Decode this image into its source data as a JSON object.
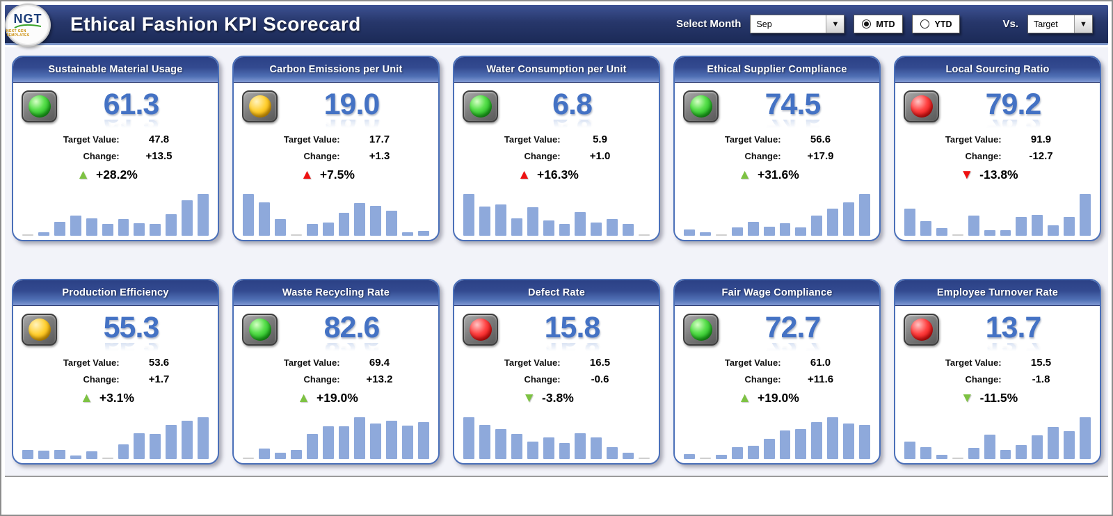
{
  "header": {
    "logo_text": "NGT",
    "logo_subtext": "NEXT GEN TEMPLATES",
    "title": "Ethical Fashion KPI Scorecard",
    "select_month_label": "Select Month",
    "month_selected": "Sep",
    "period_options": [
      {
        "label": "MTD",
        "selected": true
      },
      {
        "label": "YTD",
        "selected": false
      }
    ],
    "vs_label": "Vs.",
    "vs_selected": "Target"
  },
  "labels": {
    "target": "Target Value:",
    "change": "Change:"
  },
  "colors": {
    "topbar_navy": "#27376B",
    "card_accent_blue": "#4472C4",
    "sparkline_bar": "#8EA9DB",
    "green": "#7DC242",
    "red": "#EE1111",
    "status_green": "#2DC937",
    "status_amber": "#FFC000",
    "status_red": "#FF1F1F"
  },
  "cards": [
    {
      "title": "Sustainable Material Usage",
      "status": "green",
      "value": "61.3",
      "target": "47.8",
      "change": "+13.5",
      "pct": "+28.2%",
      "trend": "up",
      "trend_color": "green",
      "bars": [
        0.02,
        0.08,
        0.33,
        0.48,
        0.42,
        0.28,
        0.4,
        0.3,
        0.28,
        0.52,
        0.85,
        1.0
      ]
    },
    {
      "title": "Carbon Emissions per Unit",
      "status": "amber",
      "value": "19.0",
      "target": "17.7",
      "change": "+1.3",
      "pct": "+7.5%",
      "trend": "up",
      "trend_color": "red",
      "bars": [
        1.0,
        0.8,
        0.4,
        0.04,
        0.28,
        0.32,
        0.55,
        0.78,
        0.72,
        0.6,
        0.08,
        0.12
      ]
    },
    {
      "title": "Water Consumption per Unit",
      "status": "green",
      "value": "6.8",
      "target": "5.9",
      "change": "+1.0",
      "pct": "+16.3%",
      "trend": "up",
      "trend_color": "red",
      "bars": [
        1.0,
        0.7,
        0.75,
        0.42,
        0.68,
        0.36,
        0.28,
        0.56,
        0.32,
        0.4,
        0.28,
        0.03
      ]
    },
    {
      "title": "Ethical Supplier Compliance",
      "status": "green",
      "value": "74.5",
      "target": "56.6",
      "change": "+17.9",
      "pct": "+31.6%",
      "trend": "up",
      "trend_color": "green",
      "bars": [
        0.15,
        0.08,
        0.03,
        0.2,
        0.33,
        0.22,
        0.3,
        0.2,
        0.48,
        0.65,
        0.8,
        1.0
      ]
    },
    {
      "title": "Local Sourcing Ratio",
      "status": "red",
      "value": "79.2",
      "target": "91.9",
      "change": "-12.7",
      "pct": "-13.8%",
      "trend": "down",
      "trend_color": "red",
      "bars": [
        0.65,
        0.35,
        0.18,
        0.03,
        0.48,
        0.13,
        0.13,
        0.45,
        0.5,
        0.25,
        0.45,
        1.0
      ]
    },
    {
      "title": "Production Efficiency",
      "status": "amber",
      "value": "55.3",
      "target": "53.6",
      "change": "+1.7",
      "pct": "+3.1%",
      "trend": "up",
      "trend_color": "green",
      "bars": [
        0.22,
        0.2,
        0.22,
        0.08,
        0.18,
        0.03,
        0.35,
        0.62,
        0.6,
        0.82,
        0.92,
        1.0
      ]
    },
    {
      "title": "Waste Recycling Rate",
      "status": "green",
      "value": "82.6",
      "target": "69.4",
      "change": "+13.2",
      "pct": "+19.0%",
      "trend": "up",
      "trend_color": "green",
      "bars": [
        0.04,
        0.25,
        0.15,
        0.22,
        0.6,
        0.78,
        0.78,
        1.0,
        0.85,
        0.92,
        0.8,
        0.88
      ]
    },
    {
      "title": "Defect Rate",
      "status": "red",
      "value": "15.8",
      "target": "16.5",
      "change": "-0.6",
      "pct": "-3.8%",
      "trend": "down",
      "trend_color": "green",
      "bars": [
        1.0,
        0.82,
        0.72,
        0.6,
        0.42,
        0.52,
        0.38,
        0.62,
        0.52,
        0.28,
        0.15,
        0.04
      ]
    },
    {
      "title": "Fair Wage Compliance",
      "status": "green",
      "value": "72.7",
      "target": "61.0",
      "change": "+11.6",
      "pct": "+19.0%",
      "trend": "up",
      "trend_color": "green",
      "bars": [
        0.12,
        0.04,
        0.1,
        0.28,
        0.32,
        0.48,
        0.68,
        0.72,
        0.88,
        1.0,
        0.85,
        0.82
      ]
    },
    {
      "title": "Employee Turnover Rate",
      "status": "red",
      "value": "13.7",
      "target": "15.5",
      "change": "-1.8",
      "pct": "-11.5%",
      "trend": "down",
      "trend_color": "green",
      "bars": [
        0.42,
        0.28,
        0.1,
        0.03,
        0.26,
        0.58,
        0.22,
        0.34,
        0.56,
        0.76,
        0.66,
        1.0
      ]
    }
  ]
}
